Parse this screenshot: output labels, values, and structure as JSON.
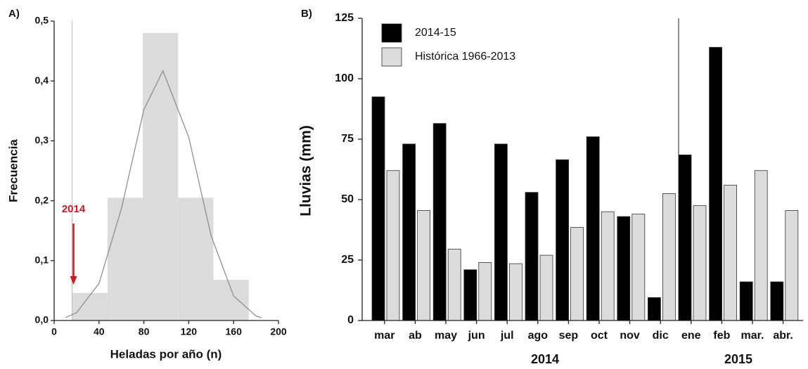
{
  "chart_data": [
    {
      "type": "histogram",
      "panel": "A)",
      "x_label": "Heladas por año (n)",
      "y_label": "Frecuencia",
      "bins": [
        16,
        47.5,
        79,
        110.5,
        142,
        173.5
      ],
      "values": [
        0.046,
        0.205,
        0.48,
        0.205,
        0.068
      ],
      "color": "#dcdcdc",
      "curve": {
        "x": [
          10,
          20,
          40,
          60,
          80,
          97,
          120,
          140,
          160,
          180,
          185
        ],
        "y": [
          0.005,
          0.013,
          0.062,
          0.187,
          0.352,
          0.417,
          0.306,
          0.141,
          0.041,
          0.0074,
          0.0045
        ],
        "color": "#888888"
      },
      "marker": {
        "label": "2014",
        "x": 16,
        "color": "#d9141b"
      },
      "xlim": [
        0,
        200
      ],
      "xticks": [
        0,
        40,
        80,
        120,
        160,
        200
      ],
      "ylim": [
        0,
        0.5
      ],
      "yticks": [
        {
          "value": 0,
          "label": "0,0"
        },
        {
          "value": 0.1,
          "label": "0,1"
        },
        {
          "value": 0.2,
          "label": "0,2"
        },
        {
          "value": 0.3,
          "label": "0,3"
        },
        {
          "value": 0.4,
          "label": "0,4"
        },
        {
          "value": 0.5,
          "label": "0,5"
        }
      ]
    },
    {
      "type": "bar",
      "panel": "B)",
      "y_label": "Lluvias (mm)",
      "categories": [
        "mar",
        "ab",
        "may",
        "jun",
        "jul",
        "ago",
        "sep",
        "oct",
        "nov",
        "dic",
        "ene",
        "feb",
        "mar.",
        "abr."
      ],
      "series": [
        {
          "name": "2014-15",
          "color": "#000000",
          "values": [
            92.5,
            73,
            81.5,
            21,
            73,
            53,
            66.5,
            76,
            43,
            9.5,
            68.5,
            113,
            16,
            16
          ]
        },
        {
          "name": "Histórica 1966-2013",
          "color": "#dcdcdc",
          "values": [
            62,
            45.5,
            29.5,
            24,
            23.5,
            27,
            38.5,
            45,
            44,
            52.5,
            47.5,
            56,
            62,
            45.5
          ]
        }
      ],
      "years": [
        "2014",
        "2015"
      ],
      "ylim": [
        0,
        125
      ],
      "yticks": [
        0,
        25,
        50,
        75,
        100,
        125
      ]
    }
  ]
}
